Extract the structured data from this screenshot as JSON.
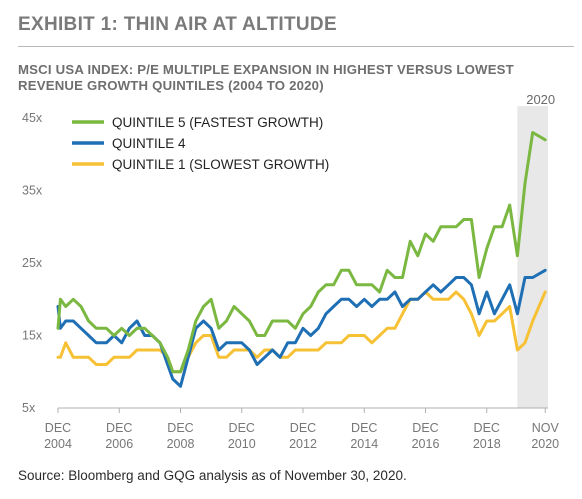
{
  "exhibit_title": "EXHIBIT 1: THIN AIR AT ALTITUDE",
  "subtitle": "MSCI USA INDEX: P/E MULTIPLE EXPANSION IN HIGHEST VERSUS LOWEST REVENUE GROWTH QUINTILES (2004 TO 2020)",
  "source": "Source: Bloomberg and GQG analysis as of November 30, 2020.",
  "colors": {
    "q5": "#7bb841",
    "q4": "#1f6fb5",
    "q1": "#f7c135",
    "band": "#e8e8e8"
  },
  "chart_data": {
    "type": "line",
    "title": "",
    "xlabel": "",
    "ylabel": "",
    "y_ticks": [
      {
        "value": 45,
        "label": "45x"
      },
      {
        "value": 35,
        "label": "35x"
      },
      {
        "value": 25,
        "label": "25x"
      },
      {
        "value": 15,
        "label": "15x"
      },
      {
        "value": 5,
        "label": "5x"
      }
    ],
    "ylim": [
      5,
      45
    ],
    "xlim": [
      2004.92,
      2020.92
    ],
    "x_ticks": [
      {
        "x": 2004.92,
        "line1": "DEC",
        "line2": "2004"
      },
      {
        "x": 2006.92,
        "line1": "DEC",
        "line2": "2006"
      },
      {
        "x": 2008.92,
        "line1": "DEC",
        "line2": "2008"
      },
      {
        "x": 2010.92,
        "line1": "DEC",
        "line2": "2010"
      },
      {
        "x": 2012.92,
        "line1": "DEC",
        "line2": "2012"
      },
      {
        "x": 2014.92,
        "line1": "DEC",
        "line2": "2014"
      },
      {
        "x": 2016.92,
        "line1": "DEC",
        "line2": "2016"
      },
      {
        "x": 2018.92,
        "line1": "DEC",
        "line2": "2018"
      },
      {
        "x": 2020.83,
        "line1": "NOV",
        "line2": "2020"
      }
    ],
    "highlight_band": {
      "from": 2019.92,
      "to": 2020.92,
      "label": "2020"
    },
    "legend_placement": "top-left",
    "series": [
      {
        "name": "QUINTILE 5 (FASTEST GROWTH)",
        "color_key": "q5",
        "points": [
          [
            2004.92,
            16
          ],
          [
            2005.0,
            20
          ],
          [
            2005.17,
            19
          ],
          [
            2005.42,
            20
          ],
          [
            2005.67,
            19
          ],
          [
            2005.92,
            17
          ],
          [
            2006.17,
            16
          ],
          [
            2006.5,
            16
          ],
          [
            2006.75,
            15
          ],
          [
            2007.0,
            16
          ],
          [
            2007.25,
            15
          ],
          [
            2007.5,
            16
          ],
          [
            2007.75,
            16
          ],
          [
            2008.0,
            15
          ],
          [
            2008.25,
            14
          ],
          [
            2008.5,
            12
          ],
          [
            2008.67,
            10
          ],
          [
            2008.92,
            10
          ],
          [
            2009.17,
            13
          ],
          [
            2009.42,
            17
          ],
          [
            2009.67,
            19
          ],
          [
            2009.92,
            20
          ],
          [
            2010.17,
            16
          ],
          [
            2010.42,
            17
          ],
          [
            2010.67,
            19
          ],
          [
            2010.92,
            18
          ],
          [
            2011.17,
            17
          ],
          [
            2011.42,
            15
          ],
          [
            2011.67,
            15
          ],
          [
            2011.92,
            17
          ],
          [
            2012.17,
            17
          ],
          [
            2012.42,
            17
          ],
          [
            2012.67,
            16
          ],
          [
            2012.92,
            18
          ],
          [
            2013.17,
            19
          ],
          [
            2013.42,
            21
          ],
          [
            2013.67,
            22
          ],
          [
            2013.92,
            22
          ],
          [
            2014.17,
            24
          ],
          [
            2014.42,
            24
          ],
          [
            2014.67,
            22
          ],
          [
            2014.92,
            22
          ],
          [
            2015.17,
            22
          ],
          [
            2015.42,
            21
          ],
          [
            2015.67,
            24
          ],
          [
            2015.92,
            23
          ],
          [
            2016.17,
            23
          ],
          [
            2016.42,
            28
          ],
          [
            2016.67,
            26
          ],
          [
            2016.92,
            29
          ],
          [
            2017.17,
            28
          ],
          [
            2017.42,
            30
          ],
          [
            2017.67,
            30
          ],
          [
            2017.92,
            30
          ],
          [
            2018.17,
            31
          ],
          [
            2018.42,
            31
          ],
          [
            2018.67,
            23
          ],
          [
            2018.92,
            27
          ],
          [
            2019.17,
            30
          ],
          [
            2019.42,
            30
          ],
          [
            2019.67,
            33
          ],
          [
            2019.92,
            26
          ],
          [
            2020.17,
            36
          ],
          [
            2020.42,
            43
          ],
          [
            2020.83,
            42
          ]
        ]
      },
      {
        "name": "QUINTILE 4",
        "color_key": "q4",
        "points": [
          [
            2004.92,
            19
          ],
          [
            2005.0,
            16
          ],
          [
            2005.17,
            17
          ],
          [
            2005.42,
            17
          ],
          [
            2005.67,
            16
          ],
          [
            2005.92,
            15
          ],
          [
            2006.17,
            14
          ],
          [
            2006.5,
            14
          ],
          [
            2006.75,
            15
          ],
          [
            2007.0,
            14
          ],
          [
            2007.25,
            16
          ],
          [
            2007.5,
            17
          ],
          [
            2007.75,
            15
          ],
          [
            2008.0,
            15
          ],
          [
            2008.25,
            14
          ],
          [
            2008.5,
            11
          ],
          [
            2008.67,
            9
          ],
          [
            2008.92,
            8
          ],
          [
            2009.17,
            12
          ],
          [
            2009.42,
            16
          ],
          [
            2009.67,
            17
          ],
          [
            2009.92,
            16
          ],
          [
            2010.17,
            13
          ],
          [
            2010.42,
            14
          ],
          [
            2010.67,
            14
          ],
          [
            2010.92,
            14
          ],
          [
            2011.17,
            13
          ],
          [
            2011.42,
            11
          ],
          [
            2011.67,
            12
          ],
          [
            2011.92,
            13
          ],
          [
            2012.17,
            12
          ],
          [
            2012.42,
            14
          ],
          [
            2012.67,
            14
          ],
          [
            2012.92,
            16
          ],
          [
            2013.17,
            15
          ],
          [
            2013.42,
            16
          ],
          [
            2013.67,
            18
          ],
          [
            2013.92,
            19
          ],
          [
            2014.17,
            20
          ],
          [
            2014.42,
            20
          ],
          [
            2014.67,
            19
          ],
          [
            2014.92,
            20
          ],
          [
            2015.17,
            19
          ],
          [
            2015.42,
            20
          ],
          [
            2015.67,
            20
          ],
          [
            2015.92,
            21
          ],
          [
            2016.17,
            19
          ],
          [
            2016.42,
            20
          ],
          [
            2016.67,
            20
          ],
          [
            2016.92,
            21
          ],
          [
            2017.17,
            22
          ],
          [
            2017.42,
            21
          ],
          [
            2017.67,
            22
          ],
          [
            2017.92,
            23
          ],
          [
            2018.17,
            23
          ],
          [
            2018.42,
            22
          ],
          [
            2018.67,
            18
          ],
          [
            2018.92,
            21
          ],
          [
            2019.17,
            18
          ],
          [
            2019.42,
            20
          ],
          [
            2019.67,
            22
          ],
          [
            2019.92,
            18
          ],
          [
            2020.17,
            23
          ],
          [
            2020.42,
            23
          ],
          [
            2020.83,
            24
          ]
        ]
      },
      {
        "name": "QUINTILE 1 (SLOWEST GROWTH)",
        "color_key": "q1",
        "points": [
          [
            2004.92,
            12
          ],
          [
            2005.0,
            12
          ],
          [
            2005.17,
            14
          ],
          [
            2005.42,
            12
          ],
          [
            2005.67,
            12
          ],
          [
            2005.92,
            12
          ],
          [
            2006.17,
            11
          ],
          [
            2006.5,
            11
          ],
          [
            2006.75,
            12
          ],
          [
            2007.0,
            12
          ],
          [
            2007.25,
            12
          ],
          [
            2007.5,
            13
          ],
          [
            2007.75,
            13
          ],
          [
            2008.0,
            13
          ],
          [
            2008.25,
            13
          ],
          [
            2008.5,
            12
          ],
          [
            2008.67,
            10
          ],
          [
            2008.92,
            10
          ],
          [
            2009.17,
            12
          ],
          [
            2009.42,
            14
          ],
          [
            2009.67,
            15
          ],
          [
            2009.92,
            15
          ],
          [
            2010.17,
            12
          ],
          [
            2010.42,
            12
          ],
          [
            2010.67,
            13
          ],
          [
            2010.92,
            13
          ],
          [
            2011.17,
            13
          ],
          [
            2011.42,
            12
          ],
          [
            2011.67,
            13
          ],
          [
            2011.92,
            13
          ],
          [
            2012.17,
            12
          ],
          [
            2012.42,
            12
          ],
          [
            2012.67,
            13
          ],
          [
            2012.92,
            13
          ],
          [
            2013.17,
            13
          ],
          [
            2013.42,
            13
          ],
          [
            2013.67,
            14
          ],
          [
            2013.92,
            14
          ],
          [
            2014.17,
            14
          ],
          [
            2014.42,
            15
          ],
          [
            2014.67,
            15
          ],
          [
            2014.92,
            15
          ],
          [
            2015.17,
            14
          ],
          [
            2015.42,
            15
          ],
          [
            2015.67,
            16
          ],
          [
            2015.92,
            16
          ],
          [
            2016.17,
            18
          ],
          [
            2016.42,
            20
          ],
          [
            2016.67,
            20
          ],
          [
            2016.92,
            21
          ],
          [
            2017.17,
            20
          ],
          [
            2017.42,
            20
          ],
          [
            2017.67,
            20
          ],
          [
            2017.92,
            21
          ],
          [
            2018.17,
            20
          ],
          [
            2018.42,
            18
          ],
          [
            2018.67,
            15
          ],
          [
            2018.92,
            17
          ],
          [
            2019.17,
            17
          ],
          [
            2019.42,
            18
          ],
          [
            2019.67,
            19
          ],
          [
            2019.92,
            13
          ],
          [
            2020.17,
            14
          ],
          [
            2020.42,
            17
          ],
          [
            2020.83,
            21
          ]
        ]
      }
    ]
  }
}
